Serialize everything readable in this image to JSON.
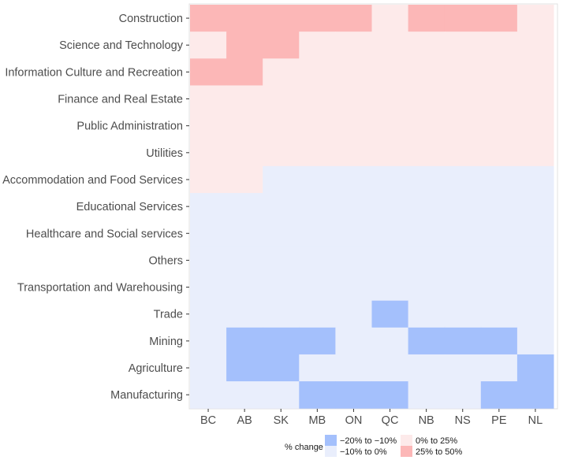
{
  "chart_data": {
    "type": "heatmap",
    "title": "",
    "xlabel": "",
    "ylabel": "",
    "x_categories": [
      "BC",
      "AB",
      "SK",
      "MB",
      "ON",
      "QC",
      "NB",
      "NS",
      "PE",
      "NL"
    ],
    "y_categories": [
      "Construction",
      "Science and Technology",
      "Information Culture and Recreation",
      "Finance and Real Estate",
      "Public Administration",
      "Utilities",
      "Accommodation and Food Services",
      "Educational Services",
      "Healthcare and Social services",
      "Others",
      "Transportation and Warehousing",
      "Trade",
      "Mining",
      "Agriculture",
      "Manufacturing"
    ],
    "legend": {
      "title": "% change",
      "position": "bottom",
      "items": [
        {
          "key": "a",
          "label": "−20% to −10%",
          "color": "#a4c0fc"
        },
        {
          "key": "b",
          "label": "−10% to 0%",
          "color": "#e9eefc"
        },
        {
          "key": "c",
          "label": "0% to 25%",
          "color": "#fdeaea"
        },
        {
          "key": "d",
          "label": "25% to 50%",
          "color": "#fcb7b7"
        }
      ]
    },
    "cells": [
      [
        "d",
        "d",
        "d",
        "d",
        "d",
        "c",
        "d",
        "d",
        "d",
        "c"
      ],
      [
        "c",
        "d",
        "d",
        "c",
        "c",
        "c",
        "c",
        "c",
        "c",
        "c"
      ],
      [
        "d",
        "d",
        "c",
        "c",
        "c",
        "c",
        "c",
        "c",
        "c",
        "c"
      ],
      [
        "c",
        "c",
        "c",
        "c",
        "c",
        "c",
        "c",
        "c",
        "c",
        "c"
      ],
      [
        "c",
        "c",
        "c",
        "c",
        "c",
        "c",
        "c",
        "c",
        "c",
        "c"
      ],
      [
        "c",
        "c",
        "c",
        "c",
        "c",
        "c",
        "c",
        "c",
        "c",
        "c"
      ],
      [
        "c",
        "c",
        "b",
        "b",
        "b",
        "b",
        "b",
        "b",
        "b",
        "b"
      ],
      [
        "b",
        "b",
        "b",
        "b",
        "b",
        "b",
        "b",
        "b",
        "b",
        "b"
      ],
      [
        "b",
        "b",
        "b",
        "b",
        "b",
        "b",
        "b",
        "b",
        "b",
        "b"
      ],
      [
        "b",
        "b",
        "b",
        "b",
        "b",
        "b",
        "b",
        "b",
        "b",
        "b"
      ],
      [
        "b",
        "b",
        "b",
        "b",
        "b",
        "b",
        "b",
        "b",
        "b",
        "b"
      ],
      [
        "b",
        "b",
        "b",
        "b",
        "b",
        "a",
        "b",
        "b",
        "b",
        "b"
      ],
      [
        "b",
        "a",
        "a",
        "a",
        "b",
        "b",
        "a",
        "a",
        "a",
        "b"
      ],
      [
        "b",
        "a",
        "a",
        "b",
        "b",
        "b",
        "b",
        "b",
        "b",
        "a"
      ],
      [
        "b",
        "b",
        "b",
        "a",
        "a",
        "a",
        "b",
        "b",
        "a",
        "a"
      ]
    ]
  }
}
